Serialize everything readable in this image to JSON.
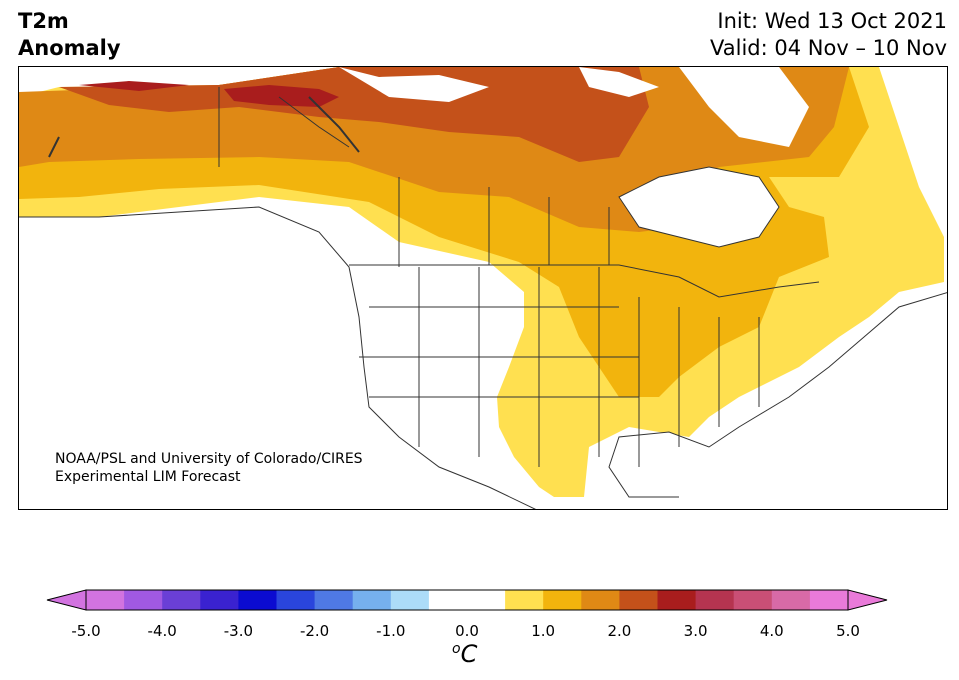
{
  "title": {
    "line1": "T2m",
    "line2": "Anomaly"
  },
  "dates": {
    "init": "Init: Wed 13 Oct 2021",
    "valid": "Valid: 04 Nov – 10 Nov"
  },
  "credit": {
    "line1": "NOAA/PSL and University of Colorado/CIRES",
    "line2": "Experimental LIM Forecast"
  },
  "colorbar": {
    "unit_sup": "o",
    "unit": "C",
    "ticks": [
      "-5.0",
      "-4.0",
      "-3.0",
      "-2.0",
      "-1.0",
      "0.0",
      "1.0",
      "2.0",
      "3.0",
      "4.0",
      "5.0"
    ],
    "under_color": "#d273e0",
    "over_color": "#e97ad9",
    "colors": [
      "#d273e0",
      "#a159e2",
      "#6a3fd6",
      "#3a22d0",
      "#0b0bd1",
      "#2a45dd",
      "#4f79e4",
      "#76b0ee",
      "#acdcf8",
      "#ffffff",
      "#ffffff",
      "#ffe050",
      "#f2b40d",
      "#df8915",
      "#c4511a",
      "#a91d1d",
      "#b53450",
      "#c94f76",
      "#d86aa7",
      "#e97ad9"
    ]
  },
  "legend_levels": {
    "plus_0_5_to_1": "#ffe050",
    "plus_1_to_1_5": "#f2b40d",
    "plus_1_5_to_2": "#df8915",
    "plus_2_to_2_5": "#c4511a",
    "plus_2_5_to_3": "#a91d1d"
  }
}
